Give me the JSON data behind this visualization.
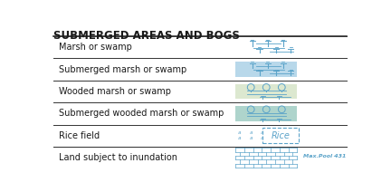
{
  "title": "SUBMERGED AREAS AND BOGS",
  "bg_color": "#ffffff",
  "title_color": "#1a1a1a",
  "text_color": "#1a1a1a",
  "line_color": "#333333",
  "symbol_blue": "#5ba3c9",
  "symbol_blue_dark": "#3a7fa8",
  "rows": [
    "Marsh or swamp",
    "Submerged marsh or swamp",
    "Wooded marsh or swamp",
    "Submerged wooded marsh or swamp",
    "Rice field",
    "Land subject to inundation"
  ],
  "box_fill_colors": [
    null,
    "#b8d8ea",
    "#dce8d0",
    "#aed4cc",
    null,
    null
  ]
}
